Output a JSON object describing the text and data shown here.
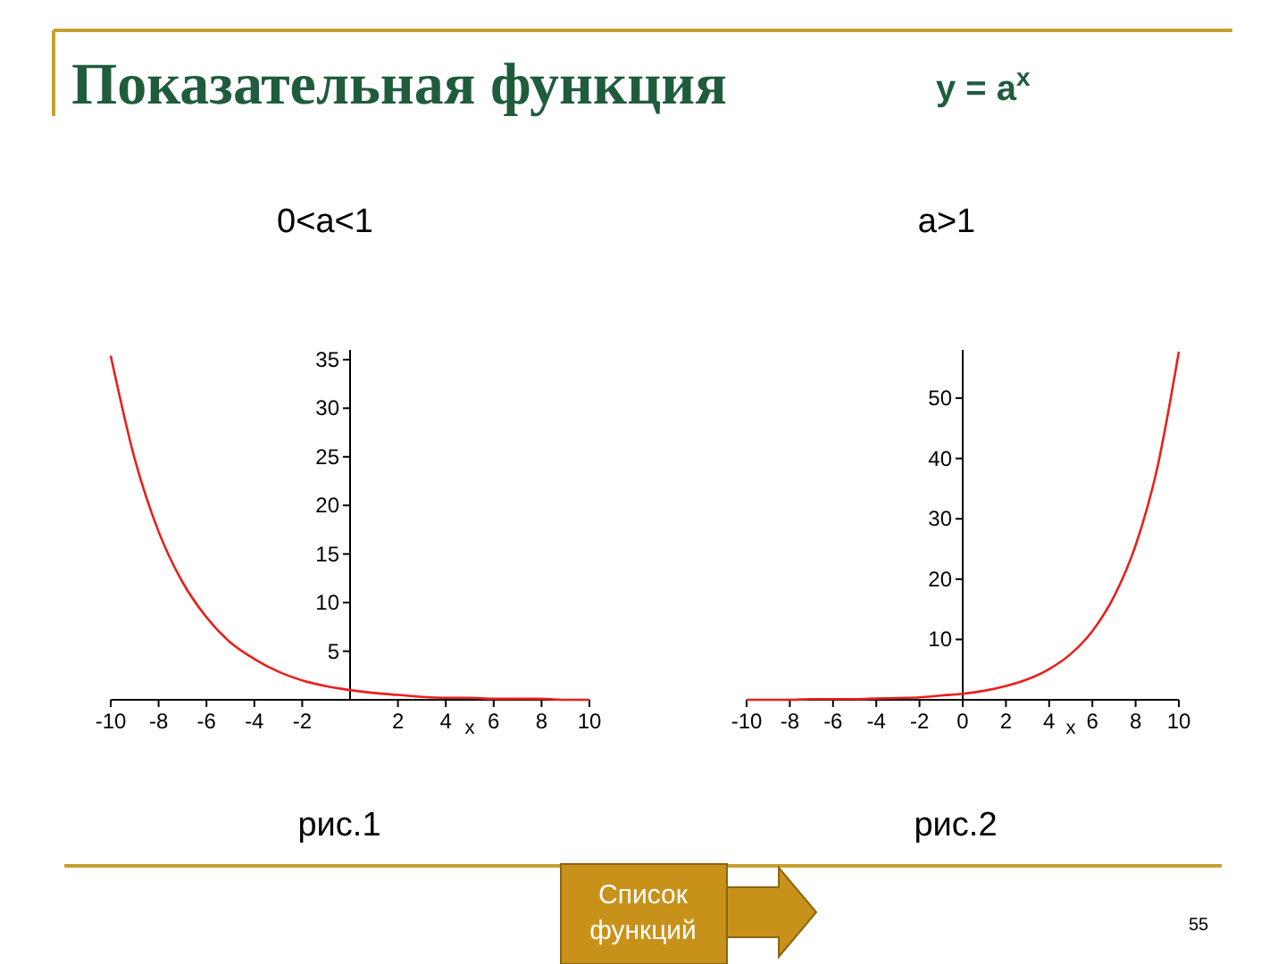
{
  "chart_data": [
    {
      "type": "line",
      "title": "0<a<1",
      "xlabel": "x",
      "annotations": [
        "рис.1"
      ],
      "x": [
        -10,
        -9,
        -8,
        -7,
        -6,
        -5,
        -4,
        -3,
        -2,
        -1,
        0,
        1,
        2,
        3,
        4,
        5,
        6,
        7,
        8,
        9,
        10
      ],
      "series": [
        {
          "color": "#e8201c",
          "values": [
            35.4,
            24.8,
            17.3,
            12.1,
            8.5,
            5.9,
            4.2,
            2.9,
            2.0,
            1.4,
            1.0,
            0.7,
            0.5,
            0.3,
            0.2,
            0.2,
            0.1,
            0.1,
            0.1,
            0.0,
            0.0
          ]
        }
      ],
      "xlim": [
        -10,
        10
      ],
      "xticks": [
        -10,
        -8,
        -6,
        -4,
        -2,
        2,
        4,
        6,
        8,
        10
      ],
      "ylim": [
        0,
        36
      ],
      "yticks": [
        5,
        10,
        15,
        20,
        25,
        30,
        35
      ],
      "grid": false
    },
    {
      "type": "line",
      "title": "a>1",
      "xlabel": "x",
      "annotations": [
        "рис.2"
      ],
      "x": [
        -10,
        -9,
        -8,
        -7,
        -6,
        -5,
        -4,
        -3,
        -2,
        -1,
        0,
        1,
        2,
        3,
        4,
        5,
        6,
        7,
        8,
        9,
        10
      ],
      "series": [
        {
          "color": "#e8201c",
          "values": [
            0.0,
            0.0,
            0.0,
            0.1,
            0.1,
            0.1,
            0.2,
            0.3,
            0.4,
            0.7,
            1.0,
            1.5,
            2.3,
            3.4,
            5.1,
            7.6,
            11.4,
            17.1,
            25.6,
            38.4,
            57.7
          ]
        }
      ],
      "xlim": [
        -10,
        10
      ],
      "xticks": [
        -10,
        -8,
        -6,
        -4,
        -2,
        0,
        2,
        4,
        6,
        8,
        10
      ],
      "ylim": [
        0,
        58
      ],
      "yticks": [
        10,
        20,
        30,
        40,
        50
      ],
      "grid": false
    },
    {
      "type": "other",
      "title": "Показательная функция",
      "subtitle": "y = a$^{x}$",
      "annotations": [
        "Список функций",
        "55"
      ]
    }
  ]
}
